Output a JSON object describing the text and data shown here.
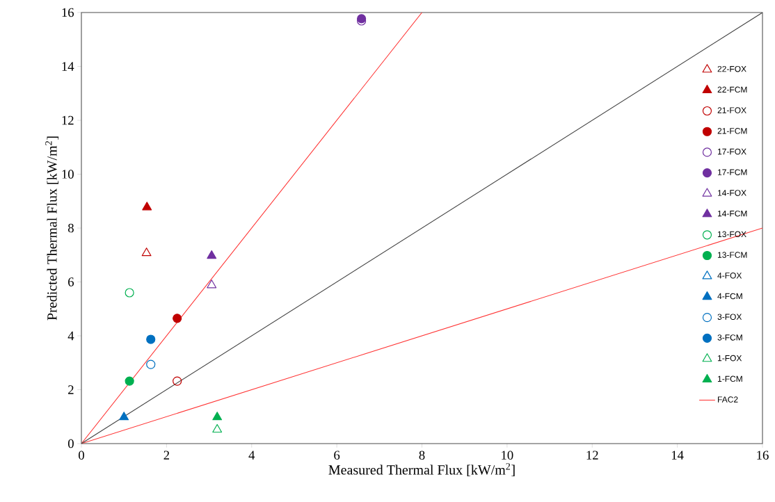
{
  "chart_data": {
    "type": "scatter",
    "xlabel": "Measured Thermal Flux [kW/m$^{2}$]",
    "ylabel": "Predicted Thermal Flux [kW/m$^{2}$]",
    "xlim": [
      0,
      16
    ],
    "ylim": [
      0,
      16
    ],
    "xticks": [
      0,
      2,
      4,
      6,
      8,
      10,
      12,
      14,
      16
    ],
    "yticks": [
      0,
      2,
      4,
      6,
      8,
      10,
      12,
      14,
      16
    ],
    "grid": false,
    "legend": "right",
    "series": [
      {
        "name": "22-FOX",
        "color": "#c00000",
        "marker": "triangle-open",
        "x": [
          1.53
        ],
        "values": [
          7.07
        ]
      },
      {
        "name": "22-FCM",
        "color": "#c00000",
        "marker": "triangle",
        "x": [
          1.54
        ],
        "values": [
          8.77
        ]
      },
      {
        "name": "21-FOX",
        "color": "#c00000",
        "marker": "circle-open",
        "x": [
          2.25
        ],
        "values": [
          2.32
        ]
      },
      {
        "name": "21-FCM",
        "color": "#c00000",
        "marker": "circle",
        "x": [
          2.25
        ],
        "values": [
          4.65
        ]
      },
      {
        "name": "17-FOX",
        "color": "#7030a0",
        "marker": "circle-open",
        "x": [
          6.58
        ],
        "values": [
          15.69
        ]
      },
      {
        "name": "17-FCM",
        "color": "#7030a0",
        "marker": "circle",
        "x": [
          6.58
        ],
        "values": [
          15.77
        ]
      },
      {
        "name": "14-FOX",
        "color": "#7030a0",
        "marker": "triangle-open",
        "x": [
          3.06
        ],
        "values": [
          5.88
        ]
      },
      {
        "name": "14-FCM",
        "color": "#7030a0",
        "marker": "triangle",
        "x": [
          3.06
        ],
        "values": [
          6.97
        ]
      },
      {
        "name": "13-FOX",
        "color": "#00b050",
        "marker": "circle-open",
        "x": [
          1.13
        ],
        "values": [
          5.6
        ]
      },
      {
        "name": "13-FCM",
        "color": "#00b050",
        "marker": "circle",
        "x": [
          1.13
        ],
        "values": [
          2.32
        ]
      },
      {
        "name": "4-FOX",
        "color": "#0070c0",
        "marker": "triangle-open"
      },
      {
        "name": "4-FCM",
        "color": "#0070c0",
        "marker": "triangle",
        "x": [
          1.0
        ],
        "values": [
          0.98
        ]
      },
      {
        "name": "3-FOX",
        "color": "#0070c0",
        "marker": "circle-open",
        "x": [
          1.63
        ],
        "values": [
          2.94
        ]
      },
      {
        "name": "3-FCM",
        "color": "#0070c0",
        "marker": "circle",
        "x": [
          1.63
        ],
        "values": [
          3.87
        ]
      },
      {
        "name": "1-FOX",
        "color": "#00b050",
        "marker": "triangle-open",
        "x": [
          3.19
        ],
        "values": [
          0.52
        ]
      },
      {
        "name": "1-FCM",
        "color": "#00b050",
        "marker": "triangle",
        "x": [
          3.19
        ],
        "values": [
          0.98
        ]
      },
      {
        "name": "FAC2",
        "type": "line",
        "color": "#ff3333",
        "marker": "none",
        "x": [
          8,
          0,
          16
        ],
        "values": [
          16,
          0,
          8
        ]
      },
      {
        "type": "line",
        "color": "#404040",
        "marker": "none",
        "x": [
          0,
          16
        ],
        "values": [
          0,
          16
        ]
      }
    ]
  }
}
